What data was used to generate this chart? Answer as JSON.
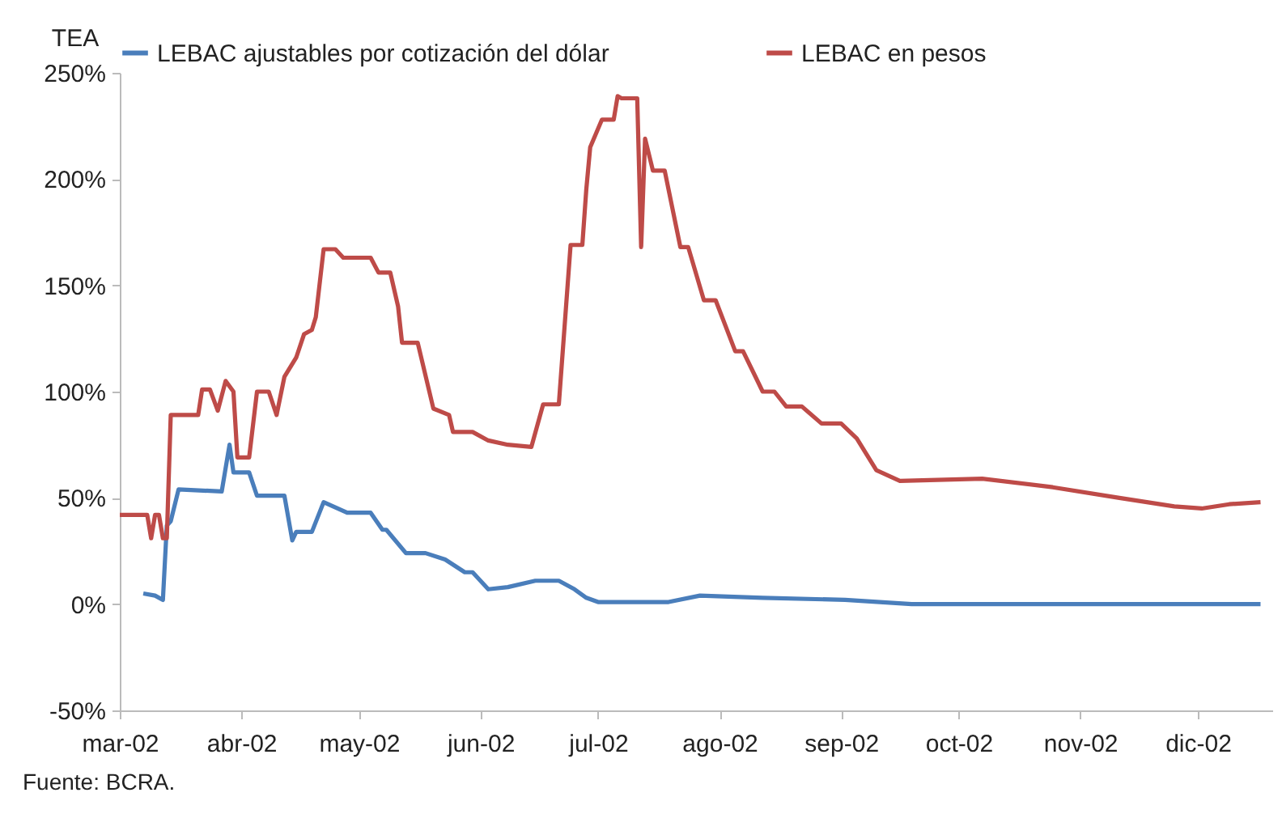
{
  "chart_data": {
    "type": "line",
    "ylabel": "TEA",
    "legend": "top",
    "grid": false,
    "marker": "none",
    "line_style": "solid",
    "xlim": [
      "2002-03-01",
      "2002-12-20"
    ],
    "xticks": [
      {
        "value": "2002-03-01",
        "label": "mar-02"
      },
      {
        "value": "2002-04-01",
        "label": "abr-02"
      },
      {
        "value": "2002-05-01",
        "label": "may-02"
      },
      {
        "value": "2002-06-01",
        "label": "jun-02"
      },
      {
        "value": "2002-07-01",
        "label": "jul-02"
      },
      {
        "value": "2002-08-01",
        "label": "ago-02"
      },
      {
        "value": "2002-09-01",
        "label": "sep-02"
      },
      {
        "value": "2002-10-01",
        "label": "oct-02"
      },
      {
        "value": "2002-11-01",
        "label": "nov-02"
      },
      {
        "value": "2002-12-01",
        "label": "dic-02"
      }
    ],
    "ylim": [
      -50,
      250
    ],
    "yticks": [
      {
        "value": -50,
        "label": "-50%"
      },
      {
        "value": 0,
        "label": "0%"
      },
      {
        "value": 50,
        "label": "50%"
      },
      {
        "value": 100,
        "label": "100%"
      },
      {
        "value": 150,
        "label": "150%"
      },
      {
        "value": 200,
        "label": "200%"
      },
      {
        "value": 250,
        "label": "250%"
      }
    ],
    "annotations": [
      "Fuente: BCRA."
    ],
    "series": [
      {
        "name": "LEBAC ajustables por cotización del dólar",
        "color": "#4a7ebb",
        "x": [
          "2002-03-07",
          "2002-03-10",
          "2002-03-12",
          "2002-03-13",
          "2002-03-14",
          "2002-03-16",
          "2002-03-27",
          "2002-03-29",
          "2002-03-30",
          "2002-04-03",
          "2002-04-05",
          "2002-04-12",
          "2002-04-14",
          "2002-04-15",
          "2002-04-19",
          "2002-04-22",
          "2002-04-28",
          "2002-05-04",
          "2002-05-07",
          "2002-05-08",
          "2002-05-13",
          "2002-05-18",
          "2002-05-23",
          "2002-05-28",
          "2002-05-30",
          "2002-06-03",
          "2002-06-08",
          "2002-06-15",
          "2002-06-21",
          "2002-06-25",
          "2002-06-28",
          "2002-07-01",
          "2002-07-19",
          "2002-07-27",
          "2002-08-12",
          "2002-09-02",
          "2002-09-19",
          "2002-12-17"
        ],
        "values": [
          5,
          4,
          2,
          37,
          39,
          54,
          53,
          75,
          62,
          62,
          51,
          51,
          30,
          34,
          34,
          48,
          43,
          43,
          35,
          35,
          24,
          24,
          21,
          15,
          15,
          7,
          8,
          11,
          11,
          7,
          3,
          1,
          1,
          4,
          3,
          2,
          0,
          0
        ]
      },
      {
        "name": "LEBAC en pesos",
        "color": "#be4b48",
        "x": [
          "2002-03-01",
          "2002-03-08",
          "2002-03-09",
          "2002-03-10",
          "2002-03-11",
          "2002-03-12",
          "2002-03-13",
          "2002-03-14",
          "2002-03-21",
          "2002-03-22",
          "2002-03-24",
          "2002-03-26",
          "2002-03-28",
          "2002-03-30",
          "2002-03-31",
          "2002-04-03",
          "2002-04-05",
          "2002-04-08",
          "2002-04-10",
          "2002-04-12",
          "2002-04-15",
          "2002-04-17",
          "2002-04-19",
          "2002-04-20",
          "2002-04-22",
          "2002-04-25",
          "2002-04-27",
          "2002-05-04",
          "2002-05-06",
          "2002-05-09",
          "2002-05-11",
          "2002-05-12",
          "2002-05-16",
          "2002-05-20",
          "2002-05-24",
          "2002-05-25",
          "2002-05-30",
          "2002-06-03",
          "2002-06-08",
          "2002-06-14",
          "2002-06-17",
          "2002-06-21",
          "2002-06-24",
          "2002-06-27",
          "2002-06-28",
          "2002-06-29",
          "2002-07-02",
          "2002-07-05",
          "2002-07-06",
          "2002-07-07",
          "2002-07-11",
          "2002-07-12",
          "2002-07-13",
          "2002-07-15",
          "2002-07-18",
          "2002-07-22",
          "2002-07-24",
          "2002-07-28",
          "2002-07-31",
          "2002-08-05",
          "2002-08-07",
          "2002-08-12",
          "2002-08-15",
          "2002-08-18",
          "2002-08-22",
          "2002-08-27",
          "2002-09-01",
          "2002-09-05",
          "2002-09-10",
          "2002-09-16",
          "2002-10-07",
          "2002-10-25",
          "2002-11-11",
          "2002-11-25",
          "2002-12-02",
          "2002-12-09",
          "2002-12-17"
        ],
        "values": [
          42,
          42,
          31,
          42,
          42,
          31,
          31,
          89,
          89,
          101,
          101,
          91,
          105,
          100,
          69,
          69,
          100,
          100,
          89,
          107,
          116,
          127,
          129,
          135,
          167,
          167,
          163,
          163,
          156,
          156,
          140,
          123,
          123,
          92,
          89,
          81,
          81,
          77,
          75,
          74,
          94,
          94,
          169,
          169,
          195,
          215,
          228,
          228,
          239,
          238,
          238,
          168,
          219,
          204,
          204,
          168,
          168,
          143,
          143,
          119,
          119,
          100,
          100,
          93,
          93,
          85,
          85,
          78,
          63,
          58,
          59,
          55,
          50,
          46,
          45,
          47,
          48
        ]
      }
    ]
  }
}
